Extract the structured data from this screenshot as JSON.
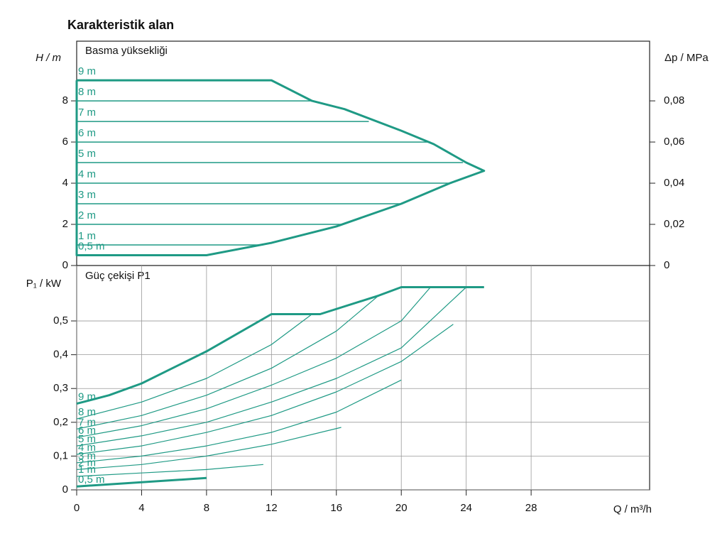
{
  "heading": "Karakteristik alan",
  "chart_data": [
    {
      "type": "line",
      "title": "Basma yüksekliği",
      "ylabel": "H / m",
      "y2label": "Δp / MPa",
      "xlim": [
        0,
        35.3
      ],
      "ylim": [
        0,
        10.9
      ],
      "yticks": [
        0,
        2,
        4,
        6,
        8
      ],
      "y2lim": [
        0,
        0.109
      ],
      "y2ticks": [
        0,
        {
          "value": 0.02,
          "label": "0,02"
        },
        {
          "value": 0.04,
          "label": "0,04"
        },
        {
          "value": 0.06,
          "label": "0,06"
        },
        {
          "value": 0.08,
          "label": "0,08"
        }
      ],
      "grid": false,
      "series": [
        {
          "color": "#1f9a85",
          "width": 3,
          "x": [
            0,
            12,
            14.5,
            16.5,
            20,
            22,
            24,
            25.1,
            23,
            20,
            16,
            12,
            8,
            0,
            0
          ],
          "y": [
            9,
            9,
            8,
            7.6,
            6.55,
            5.9,
            5,
            4.6,
            4,
            3,
            1.9,
            1.1,
            0.5,
            0.5,
            9
          ]
        },
        {
          "name": "9 m",
          "color": "#1f9a85",
          "width": 1.5,
          "x": [
            0,
            12
          ],
          "y": [
            9,
            9
          ]
        },
        {
          "name": "8 m",
          "color": "#1f9a85",
          "width": 1.5,
          "x": [
            0,
            14.5
          ],
          "y": [
            8,
            8
          ]
        },
        {
          "name": "7 m",
          "color": "#1f9a85",
          "width": 1.5,
          "x": [
            0,
            18
          ],
          "y": [
            7,
            7
          ]
        },
        {
          "name": "6 m",
          "color": "#1f9a85",
          "width": 1.5,
          "x": [
            0,
            21.8
          ],
          "y": [
            6,
            6
          ]
        },
        {
          "name": "5 m",
          "color": "#1f9a85",
          "width": 1.5,
          "x": [
            0,
            23.8
          ],
          "y": [
            5,
            5
          ]
        },
        {
          "name": "4 m",
          "color": "#1f9a85",
          "width": 1.5,
          "x": [
            0,
            23.1
          ],
          "y": [
            4,
            4
          ]
        },
        {
          "name": "3 m",
          "color": "#1f9a85",
          "width": 1.5,
          "x": [
            0,
            20
          ],
          "y": [
            3,
            3
          ]
        },
        {
          "name": "2 m",
          "color": "#1f9a85",
          "width": 1.5,
          "x": [
            0,
            16.3
          ],
          "y": [
            2,
            2
          ]
        },
        {
          "name": "1 m",
          "color": "#1f9a85",
          "width": 1.5,
          "x": [
            0,
            11.5
          ],
          "y": [
            1,
            1
          ]
        },
        {
          "name": "0,5 m",
          "color": "#1f9a85",
          "width": 1.5,
          "x": [
            0,
            8
          ],
          "y": [
            0.5,
            0.5
          ]
        }
      ]
    },
    {
      "type": "line",
      "title": "Güç çekişi P1",
      "ylabel": "P₁ / kW",
      "xlabel": "Q / m³/h",
      "xlim": [
        0,
        35.3
      ],
      "xticks": [
        0,
        4,
        8,
        12,
        16,
        20,
        24,
        28
      ],
      "ylim": [
        0,
        0.664
      ],
      "yticks": [
        0,
        {
          "value": 0.1,
          "label": "0,1"
        },
        {
          "value": 0.2,
          "label": "0,2"
        },
        {
          "value": 0.3,
          "label": "0,3"
        },
        {
          "value": 0.4,
          "label": "0,4"
        },
        {
          "value": 0.5,
          "label": "0,5"
        }
      ],
      "grid": true,
      "series": [
        {
          "name": "9 m",
          "color": "#1f9a85",
          "width": 3,
          "x": [
            0,
            2,
            4,
            8,
            12,
            15,
            18.6,
            20,
            25.1
          ],
          "y": [
            0.255,
            0.28,
            0.315,
            0.41,
            0.52,
            0.52,
            0.575,
            0.6,
            0.6
          ]
        },
        {
          "name": "8 m",
          "color": "#1f9a85",
          "width": 1.2,
          "x": [
            0,
            4,
            8,
            12,
            14.5
          ],
          "y": [
            0.21,
            0.26,
            0.33,
            0.43,
            0.52
          ]
        },
        {
          "name": "7 m",
          "color": "#1f9a85",
          "width": 1.2,
          "x": [
            0,
            4,
            8,
            12,
            16,
            18.6
          ],
          "y": [
            0.18,
            0.22,
            0.28,
            0.36,
            0.47,
            0.575
          ]
        },
        {
          "name": "6 m",
          "color": "#1f9a85",
          "width": 1.2,
          "x": [
            0,
            4,
            8,
            12,
            16,
            20,
            21.8
          ],
          "y": [
            0.155,
            0.19,
            0.24,
            0.31,
            0.39,
            0.5,
            0.6
          ]
        },
        {
          "name": "5 m",
          "color": "#1f9a85",
          "width": 1.2,
          "x": [
            0,
            4,
            8,
            12,
            16,
            20,
            24
          ],
          "y": [
            0.13,
            0.16,
            0.2,
            0.26,
            0.33,
            0.42,
            0.6
          ]
        },
        {
          "name": "4 m",
          "color": "#1f9a85",
          "width": 1.2,
          "x": [
            0,
            4,
            8,
            12,
            16,
            20,
            23.2
          ],
          "y": [
            0.105,
            0.13,
            0.17,
            0.22,
            0.29,
            0.38,
            0.49
          ]
        },
        {
          "name": "3 m",
          "color": "#1f9a85",
          "width": 1.2,
          "x": [
            0,
            4,
            8,
            12,
            16,
            20
          ],
          "y": [
            0.08,
            0.1,
            0.13,
            0.17,
            0.23,
            0.325
          ]
        },
        {
          "name": "2 m",
          "color": "#1f9a85",
          "width": 1.2,
          "x": [
            0,
            4,
            8,
            12,
            16.3
          ],
          "y": [
            0.06,
            0.075,
            0.1,
            0.135,
            0.185
          ]
        },
        {
          "name": "1 m",
          "color": "#1f9a85",
          "width": 1.2,
          "x": [
            0,
            4,
            8,
            11.5
          ],
          "y": [
            0.04,
            0.05,
            0.06,
            0.075
          ]
        },
        {
          "name": "0,5 m",
          "color": "#1f9a85",
          "width": 3,
          "x": [
            0,
            8
          ],
          "y": [
            0.01,
            0.035
          ]
        }
      ]
    }
  ]
}
